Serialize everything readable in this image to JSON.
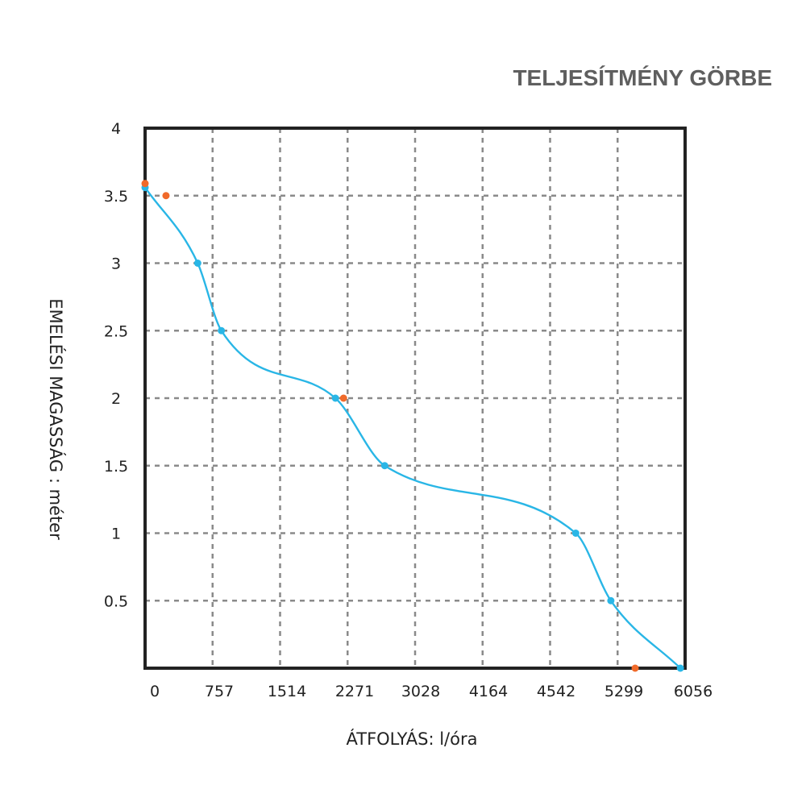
{
  "chart_data": {
    "type": "line",
    "title": "TELJESÍTMÉNY GÖRBE",
    "xlabel": "ÁTFOLYÁS: l/óra",
    "ylabel": "EMELÉSI MAGASSÁG : méter",
    "x_tick_labels": [
      "0",
      "757",
      "1514",
      "2271",
      "3028",
      "4164",
      "4542",
      "5299",
      "6056"
    ],
    "y_tick_labels": [
      "4",
      "3.5",
      "3",
      "2.5",
      "2",
      "1.5",
      "1",
      "0.5"
    ],
    "xlim": [
      0,
      8
    ],
    "ylim": [
      0,
      4
    ],
    "grid": true,
    "x_unit_note": "x values given in grid-division units (one division per printed tick label)",
    "series": [
      {
        "color": "#29b6e6",
        "marker": "circle",
        "x": [
          0.0,
          0.78,
          1.13,
          2.82,
          3.55,
          6.38,
          6.9,
          7.93
        ],
        "y": [
          3.56,
          3.0,
          2.5,
          2.0,
          1.5,
          1.0,
          0.5,
          0.0
        ]
      },
      {
        "color": "#f06a2a",
        "marker": "circle",
        "x": [
          0.0,
          0.31,
          2.94,
          7.26
        ],
        "y": [
          3.59,
          3.5,
          2.0,
          0.0
        ]
      }
    ]
  }
}
